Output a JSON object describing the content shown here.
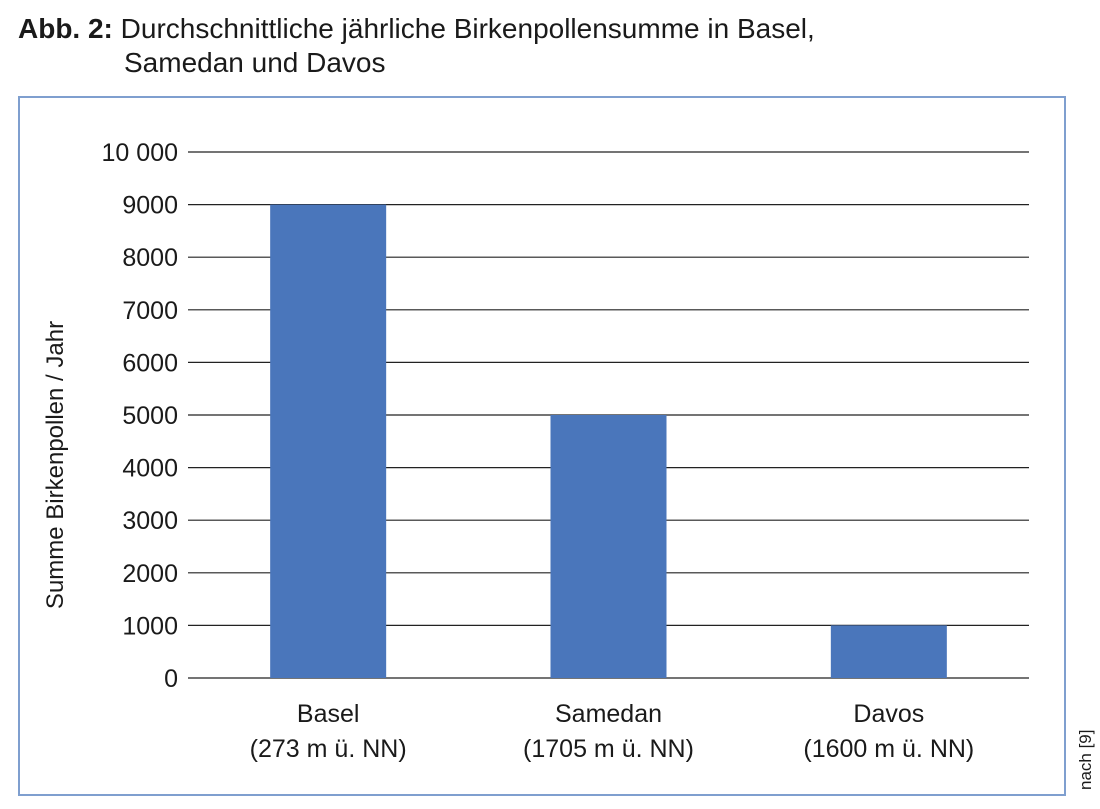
{
  "caption": {
    "label": "Abb. 2:",
    "title_line1": "Durchschnittliche jährliche Birkenpollensumme in Basel,",
    "title_line2": "Samedan und Davos"
  },
  "source_note": "nach [9]",
  "chart_data": {
    "type": "bar",
    "title": "Durchschnittliche jährliche Birkenpollensumme in Basel, Samedan und Davos",
    "categories": [
      [
        "Basel",
        "(273 m ü. NN)"
      ],
      [
        "Samedan",
        "(1705 m ü. NN)"
      ],
      [
        "Davos",
        "(1600 m ü. NN)"
      ]
    ],
    "values": [
      9000,
      5000,
      1000
    ],
    "ylabel": "Summe Birkenpollen / Jahr",
    "xlabel": "",
    "ylim": [
      0,
      10000
    ],
    "yticks": [
      0,
      1000,
      2000,
      3000,
      4000,
      5000,
      6000,
      7000,
      8000,
      9000,
      10000
    ],
    "ytick_labels": [
      "0",
      "1000",
      "2000",
      "3000",
      "4000",
      "5000",
      "6000",
      "7000",
      "8000",
      "9000",
      "10 000"
    ],
    "grid": true,
    "bar_color": "#4a76bb",
    "grid_color": "#222222",
    "frame_color": "#7f9fcf"
  }
}
